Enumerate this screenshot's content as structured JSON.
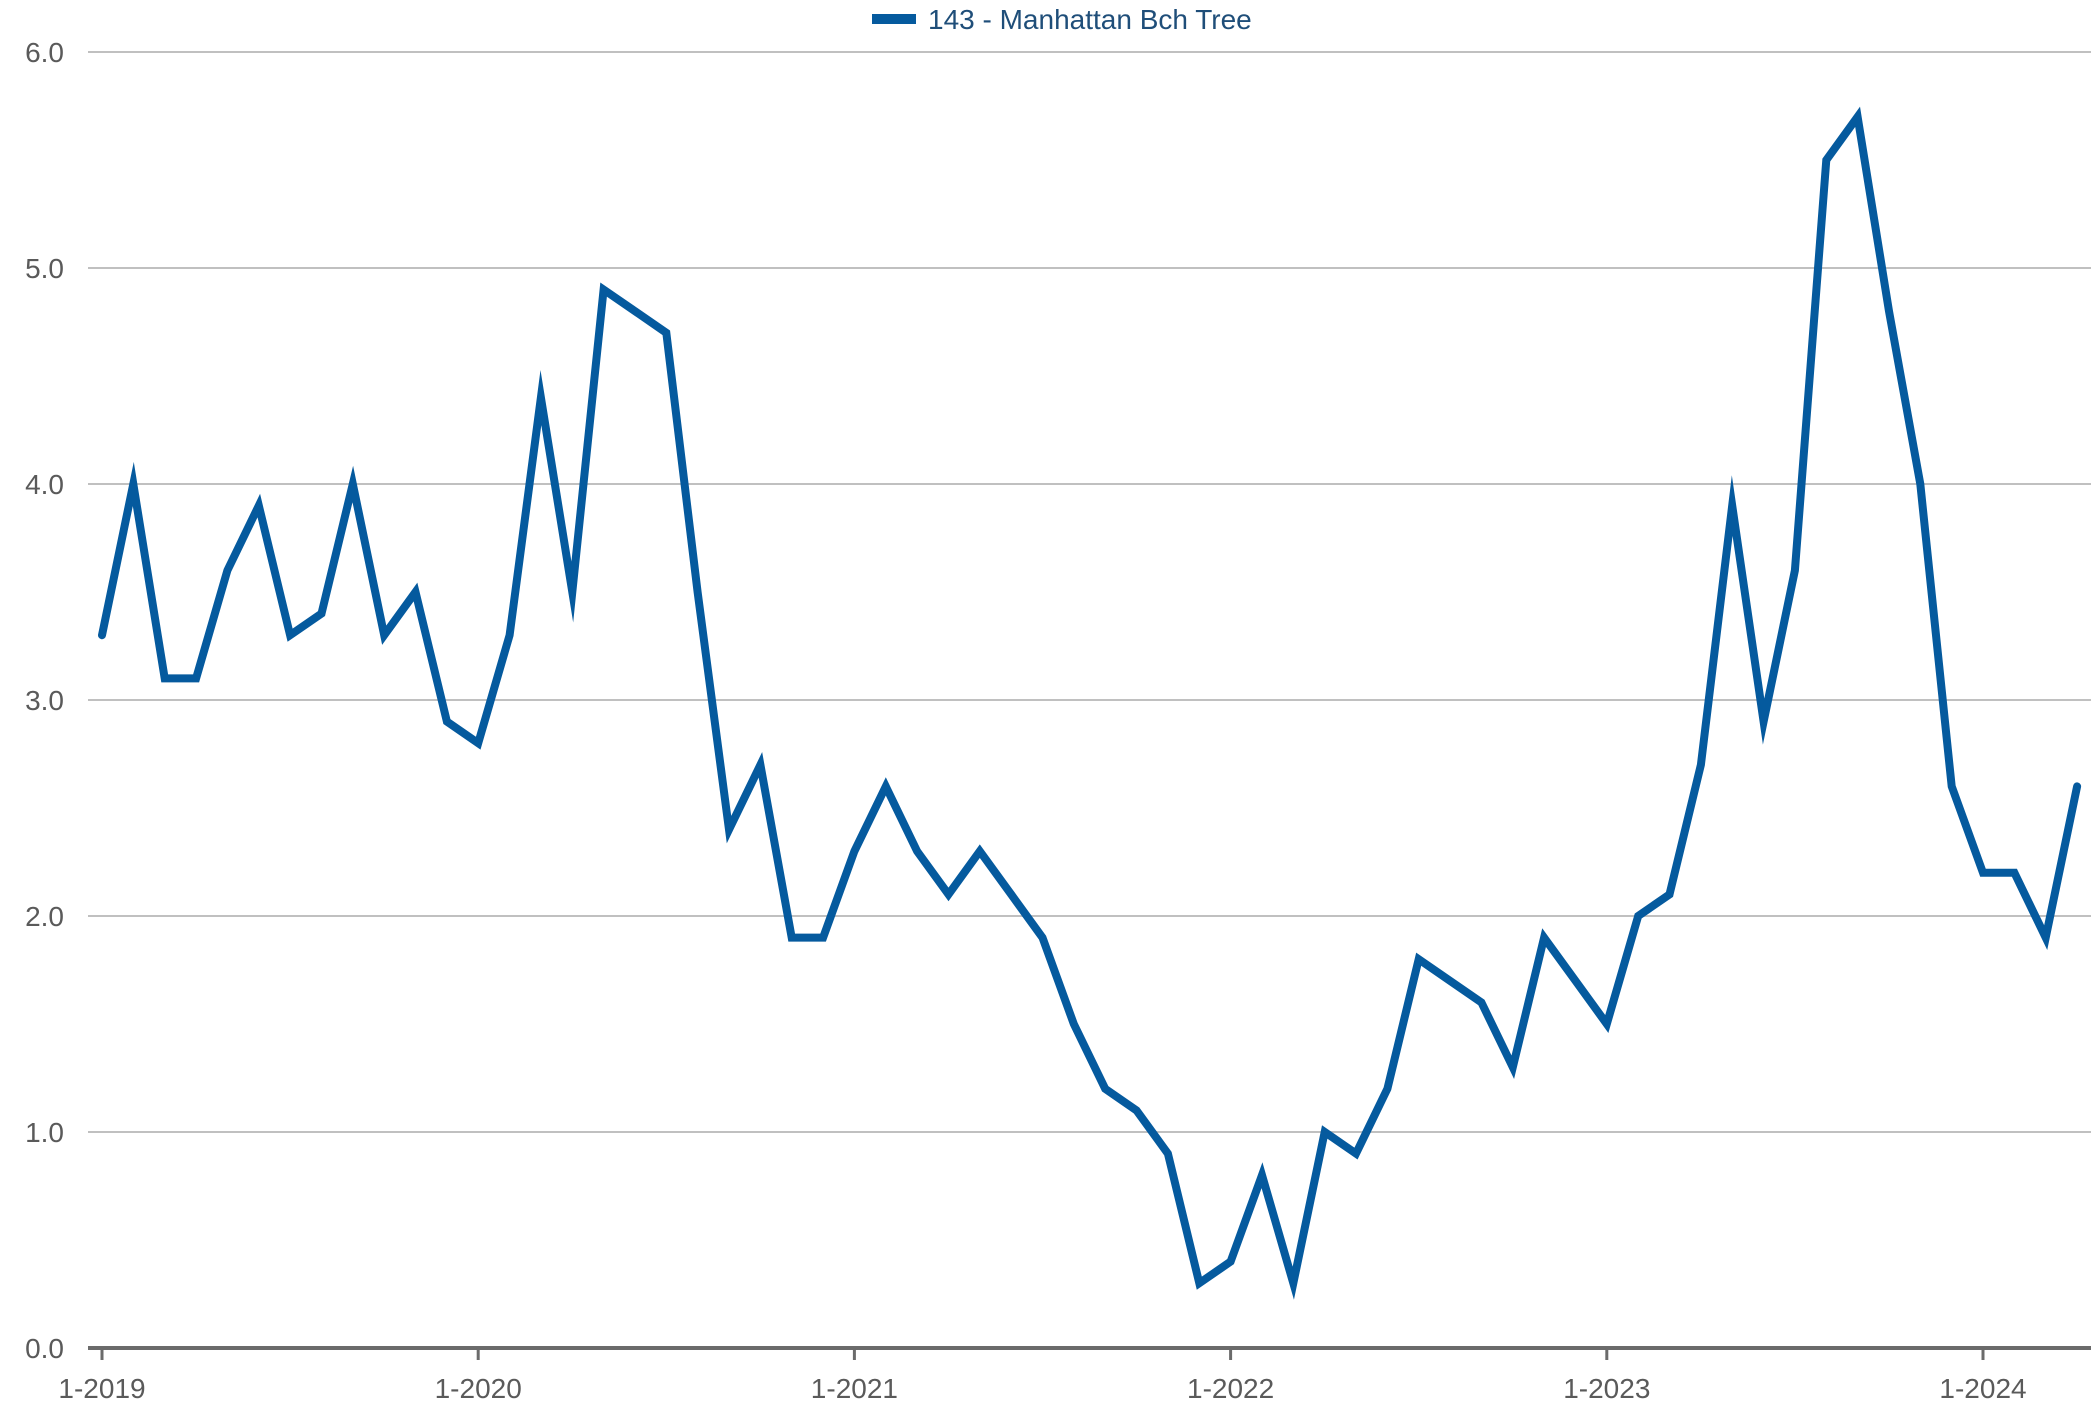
{
  "chart_data": {
    "type": "line",
    "title": "",
    "xlabel": "",
    "ylabel": "",
    "ylim": [
      0,
      6
    ],
    "yticks": [
      "0.0",
      "1.0",
      "2.0",
      "3.0",
      "4.0",
      "5.0",
      "6.0"
    ],
    "xticks": [
      "1-2019",
      "1-2020",
      "1-2021",
      "1-2022",
      "1-2023",
      "1-2024"
    ],
    "grid": true,
    "legend_position": "top-center",
    "colors": {
      "series": "#055a9e",
      "grid": "#c0c0c0",
      "axis": "#6b6b6b",
      "tick_text": "#5a5a5a",
      "legend_text": "#1f4e79"
    },
    "x": [
      "2019-01",
      "2019-02",
      "2019-03",
      "2019-04",
      "2019-05",
      "2019-06",
      "2019-07",
      "2019-08",
      "2019-09",
      "2019-10",
      "2019-11",
      "2019-12",
      "2020-01",
      "2020-02",
      "2020-03",
      "2020-04",
      "2020-05",
      "2020-06",
      "2020-07",
      "2020-08",
      "2020-09",
      "2020-10",
      "2020-11",
      "2020-12",
      "2021-01",
      "2021-02",
      "2021-03",
      "2021-04",
      "2021-05",
      "2021-06",
      "2021-07",
      "2021-08",
      "2021-09",
      "2021-10",
      "2021-11",
      "2021-12",
      "2022-01",
      "2022-02",
      "2022-03",
      "2022-04",
      "2022-05",
      "2022-06",
      "2022-07",
      "2022-08",
      "2022-09",
      "2022-10",
      "2022-11",
      "2022-12",
      "2023-01",
      "2023-02",
      "2023-03",
      "2023-04",
      "2023-05",
      "2023-06",
      "2023-07",
      "2023-08",
      "2023-09",
      "2023-10",
      "2023-11",
      "2023-12",
      "2024-01",
      "2024-02",
      "2024-03",
      "2024-04"
    ],
    "series": [
      {
        "name": "143 - Manhattan Bch Tree",
        "values": [
          3.3,
          4.0,
          3.1,
          3.1,
          3.6,
          3.9,
          3.3,
          3.4,
          4.0,
          3.3,
          3.5,
          2.9,
          2.8,
          3.3,
          4.4,
          3.5,
          4.9,
          4.8,
          4.7,
          3.5,
          2.4,
          2.7,
          1.9,
          1.9,
          2.3,
          2.6,
          2.3,
          2.1,
          2.3,
          2.1,
          1.9,
          1.5,
          1.2,
          1.1,
          0.9,
          0.3,
          0.4,
          0.8,
          0.3,
          1.0,
          0.9,
          1.2,
          1.8,
          1.7,
          1.6,
          1.3,
          1.9,
          1.7,
          1.5,
          2.0,
          2.1,
          2.7,
          3.9,
          2.9,
          3.6,
          5.5,
          5.7,
          4.8,
          4.0,
          2.6,
          2.2,
          2.2,
          1.9,
          2.6
        ]
      }
    ]
  }
}
